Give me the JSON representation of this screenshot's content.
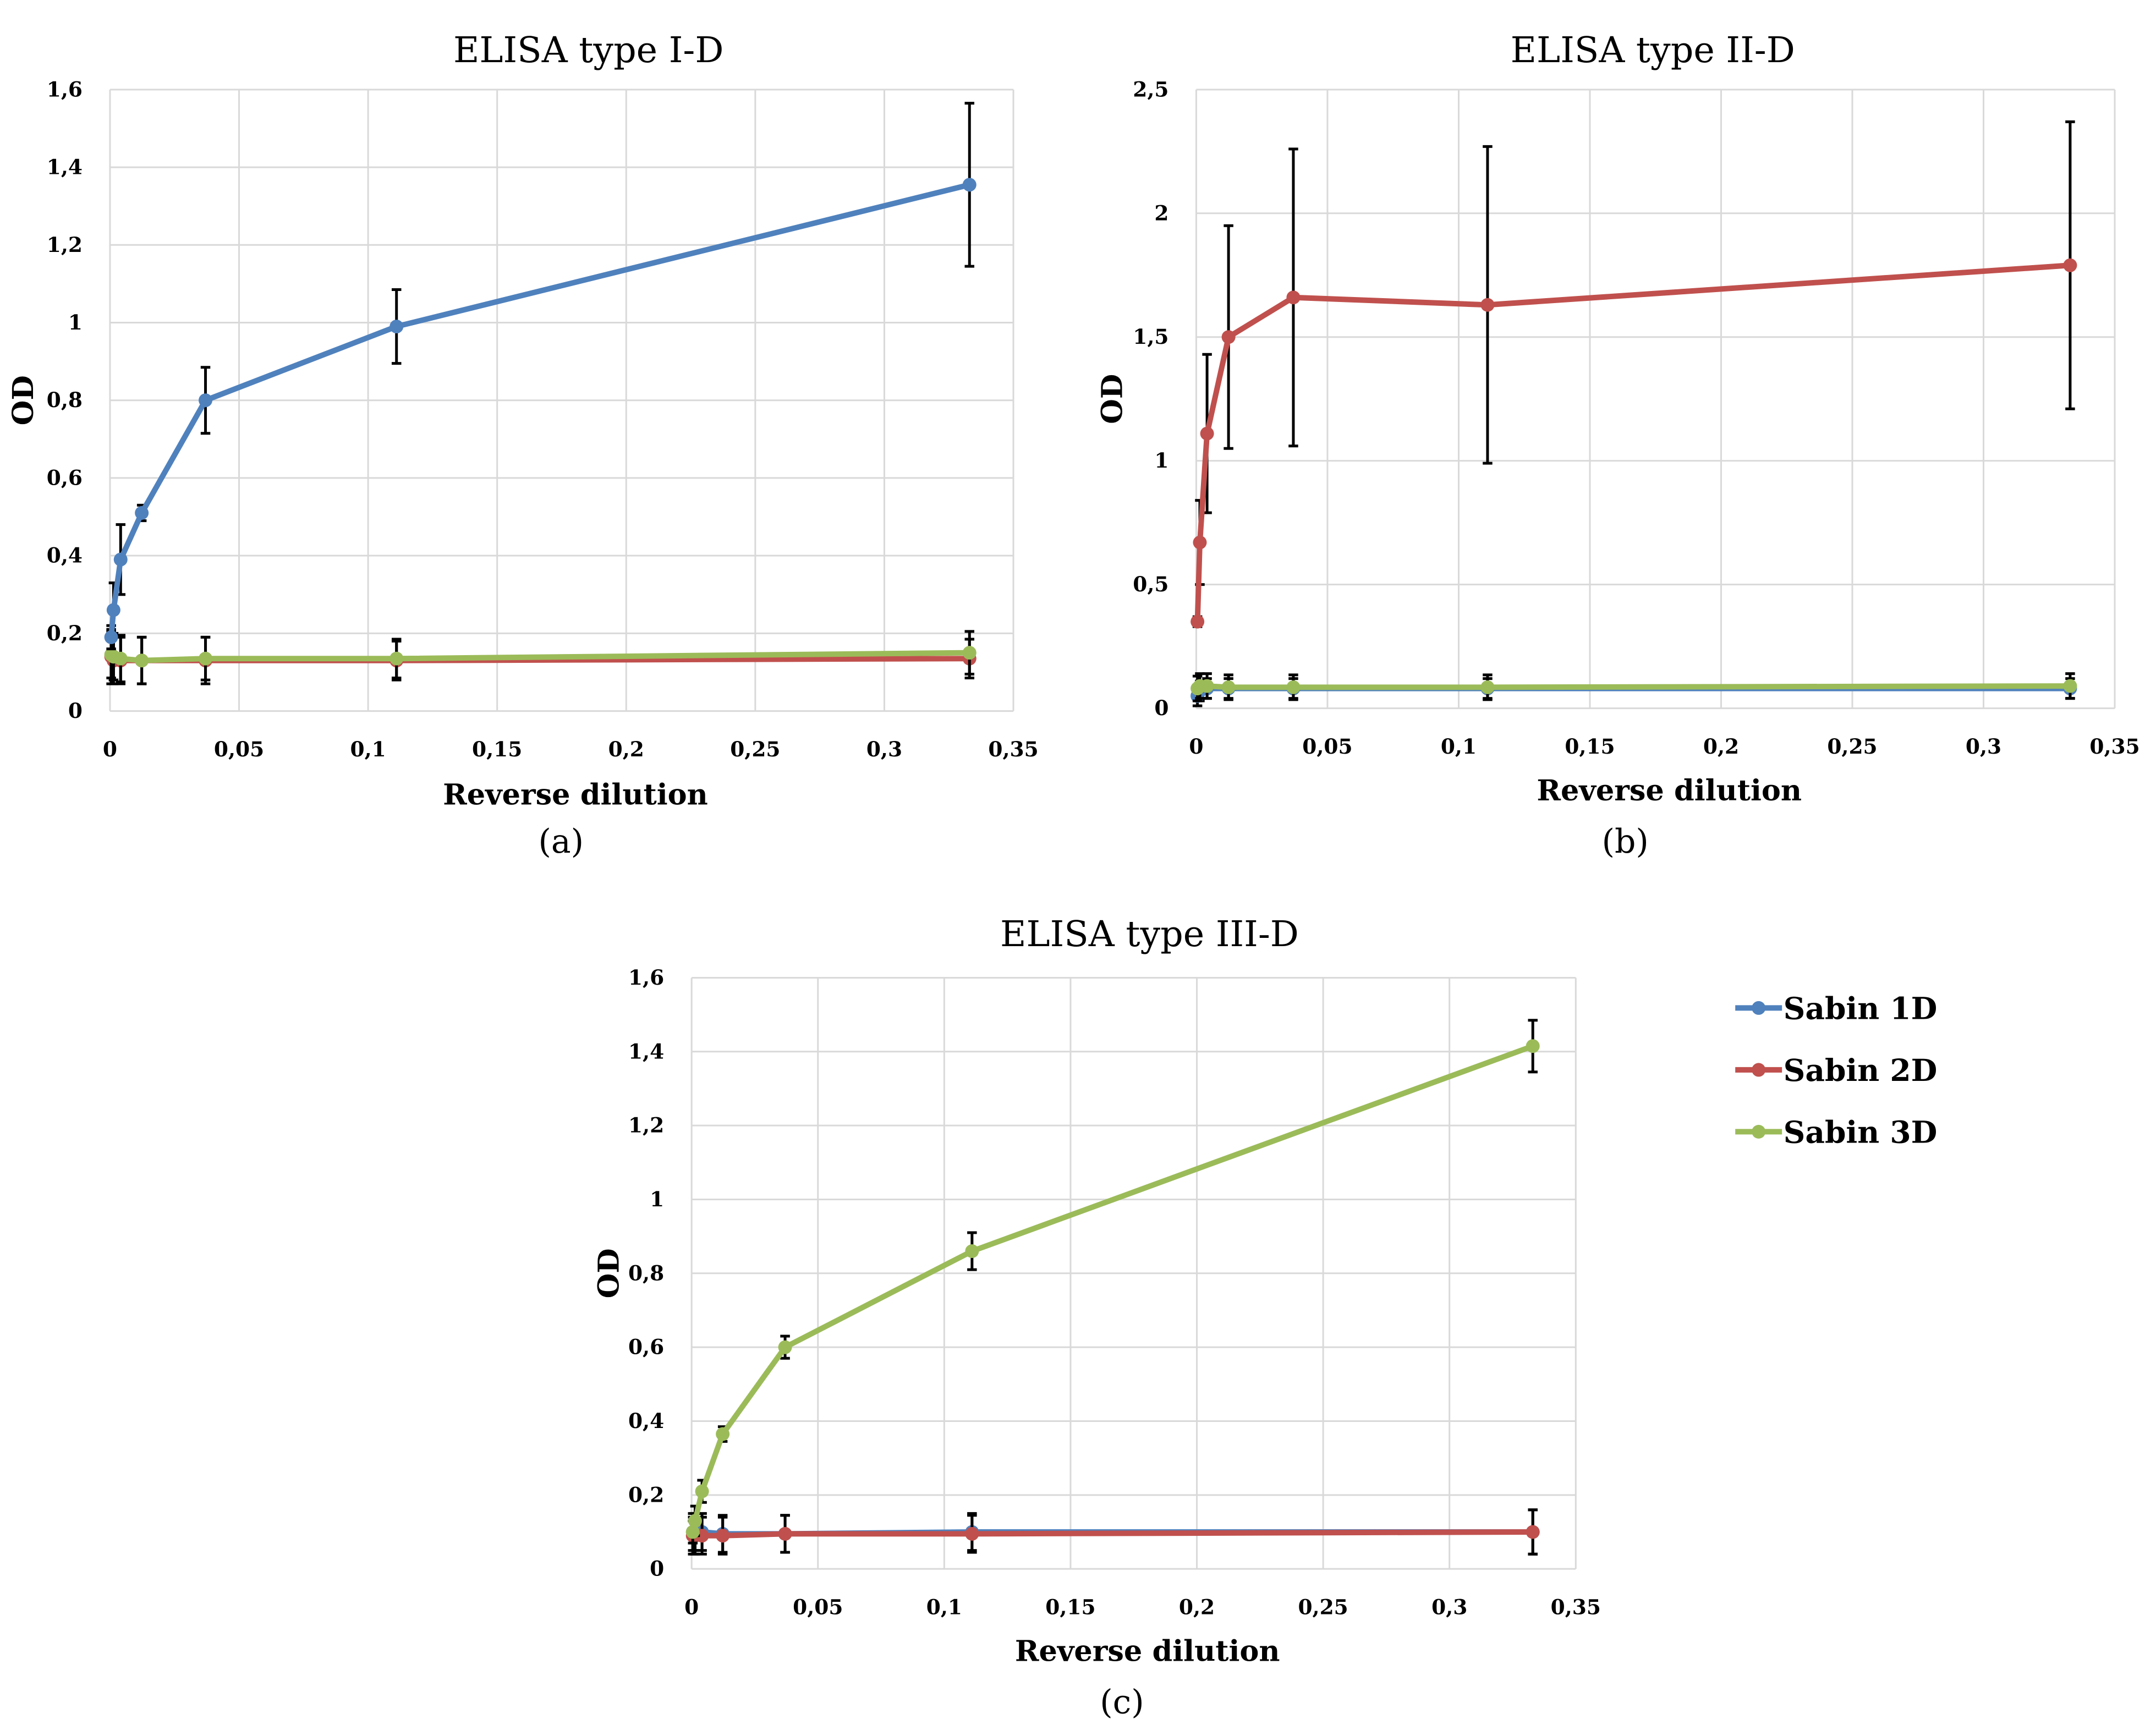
{
  "colors": {
    "Sabin 1D": "#4f81bd",
    "Sabin 2D": "#c0504d",
    "Sabin 3D": "#9bbb59",
    "grid": "#d9d9d9",
    "error": "#000000"
  },
  "legend": [
    "Sabin 1D",
    "Sabin 2D",
    "Sabin 3D"
  ],
  "chart_data": [
    {
      "type": "line",
      "title": "ELISA type I-D",
      "panel": "(a)",
      "xlabel": "Reverse dilution",
      "ylabel": "OD",
      "xlim": [
        0,
        0.35
      ],
      "ylim": [
        0,
        1.6
      ],
      "xticks": [
        0,
        0.05,
        0.1,
        0.15,
        0.2,
        0.25,
        0.3,
        0.35
      ],
      "xtick_labels": [
        "0",
        "0,05",
        "0,1",
        "0,15",
        "0,2",
        "0,25",
        "0,3",
        "0,35"
      ],
      "yticks": [
        0,
        0.2,
        0.4,
        0.6,
        0.8,
        1,
        1.2,
        1.4,
        1.6
      ],
      "ytick_labels": [
        "0",
        "0,2",
        "0,4",
        "0,6",
        "0,8",
        "1",
        "1,2",
        "1,4",
        "1,6"
      ],
      "grid": true,
      "x": [
        0.000457,
        0.00137,
        0.00412,
        0.0123,
        0.037,
        0.111,
        0.333
      ],
      "series": [
        {
          "name": "Sabin 2D",
          "values": [
            0.14,
            0.13,
            0.13,
            0.13,
            0.13,
            0.13,
            0.135
          ],
          "errors": [
            0.07,
            0.06,
            0.06,
            0.06,
            0.06,
            0.05,
            0.05
          ]
        },
        {
          "name": "Sabin 3D",
          "values": [
            0.145,
            0.14,
            0.135,
            0.13,
            0.135,
            0.135,
            0.15
          ],
          "errors": [
            0.06,
            0.06,
            0.06,
            0.06,
            0.055,
            0.05,
            0.055
          ]
        },
        {
          "name": "Sabin 1D",
          "values": [
            0.19,
            0.26,
            0.39,
            0.51,
            0.8,
            0.99,
            1.355
          ],
          "errors": [
            0.03,
            0.07,
            0.09,
            0.02,
            0.085,
            0.095,
            0.21
          ]
        }
      ]
    },
    {
      "type": "line",
      "title": "ELISA type II-D",
      "panel": "(b)",
      "xlabel": "Reverse dilution",
      "ylabel": "OD",
      "xlim": [
        0,
        0.35
      ],
      "ylim": [
        0,
        2.5
      ],
      "xticks": [
        0,
        0.05,
        0.1,
        0.15,
        0.2,
        0.25,
        0.3,
        0.35
      ],
      "xtick_labels": [
        "0",
        "0,05",
        "0,1",
        "0,15",
        "0,2",
        "0,25",
        "0,3",
        "0,35"
      ],
      "yticks": [
        0,
        0.5,
        1,
        1.5,
        2,
        2.5
      ],
      "ytick_labels": [
        "0",
        "0,5",
        "1",
        "1,5",
        "2",
        "2,5"
      ],
      "grid": true,
      "x": [
        0.000457,
        0.00137,
        0.00412,
        0.0123,
        0.037,
        0.111,
        0.333
      ],
      "series": [
        {
          "name": "Sabin 1D",
          "values": [
            0.05,
            0.07,
            0.08,
            0.08,
            0.08,
            0.08,
            0.08
          ],
          "errors": [
            0.04,
            0.04,
            0.04,
            0.04,
            0.04,
            0.04,
            0.04
          ]
        },
        {
          "name": "Sabin 3D",
          "values": [
            0.08,
            0.09,
            0.09,
            0.085,
            0.085,
            0.085,
            0.09
          ],
          "errors": [
            0.05,
            0.05,
            0.05,
            0.05,
            0.05,
            0.05,
            0.05
          ]
        },
        {
          "name": "Sabin 2D",
          "values": [
            0.35,
            0.67,
            1.11,
            1.5,
            1.66,
            1.63,
            1.79
          ],
          "errors": [
            0.02,
            0.17,
            0.32,
            0.45,
            0.6,
            0.64,
            0.58
          ]
        }
      ]
    },
    {
      "type": "line",
      "title": "ELISA type III-D",
      "panel": "(c)",
      "xlabel": "Reverse dilution",
      "ylabel": "OD",
      "xlim": [
        0,
        0.35
      ],
      "ylim": [
        0,
        1.6
      ],
      "xticks": [
        0,
        0.05,
        0.1,
        0.15,
        0.2,
        0.25,
        0.3,
        0.35
      ],
      "xtick_labels": [
        "0",
        "0,05",
        "0,1",
        "0,15",
        "0,2",
        "0,25",
        "0,3",
        "0,35"
      ],
      "yticks": [
        0,
        0.2,
        0.4,
        0.6,
        0.8,
        1,
        1.2,
        1.4,
        1.6
      ],
      "ytick_labels": [
        "0",
        "0,2",
        "0,4",
        "0,6",
        "0,8",
        "1",
        "1,2",
        "1,4",
        "1,6"
      ],
      "grid": true,
      "x": [
        0.000457,
        0.00137,
        0.00412,
        0.0123,
        0.037,
        0.111,
        0.333
      ],
      "series": [
        {
          "name": "Sabin 1D",
          "values": [
            0.1,
            0.1,
            0.1,
            0.095,
            0.095,
            0.1,
            0.1
          ],
          "errors": [
            0.05,
            0.05,
            0.05,
            0.05,
            0.05,
            0.05,
            0.06
          ]
        },
        {
          "name": "Sabin 2D",
          "values": [
            0.09,
            0.09,
            0.09,
            0.09,
            0.095,
            0.095,
            0.1
          ],
          "errors": [
            0.05,
            0.05,
            0.05,
            0.05,
            0.05,
            0.05,
            0.06
          ]
        },
        {
          "name": "Sabin 3D",
          "values": [
            0.1,
            0.13,
            0.21,
            0.365,
            0.6,
            0.86,
            1.415
          ],
          "errors": [
            0.03,
            0.04,
            0.03,
            0.02,
            0.03,
            0.05,
            0.07
          ]
        }
      ]
    }
  ]
}
